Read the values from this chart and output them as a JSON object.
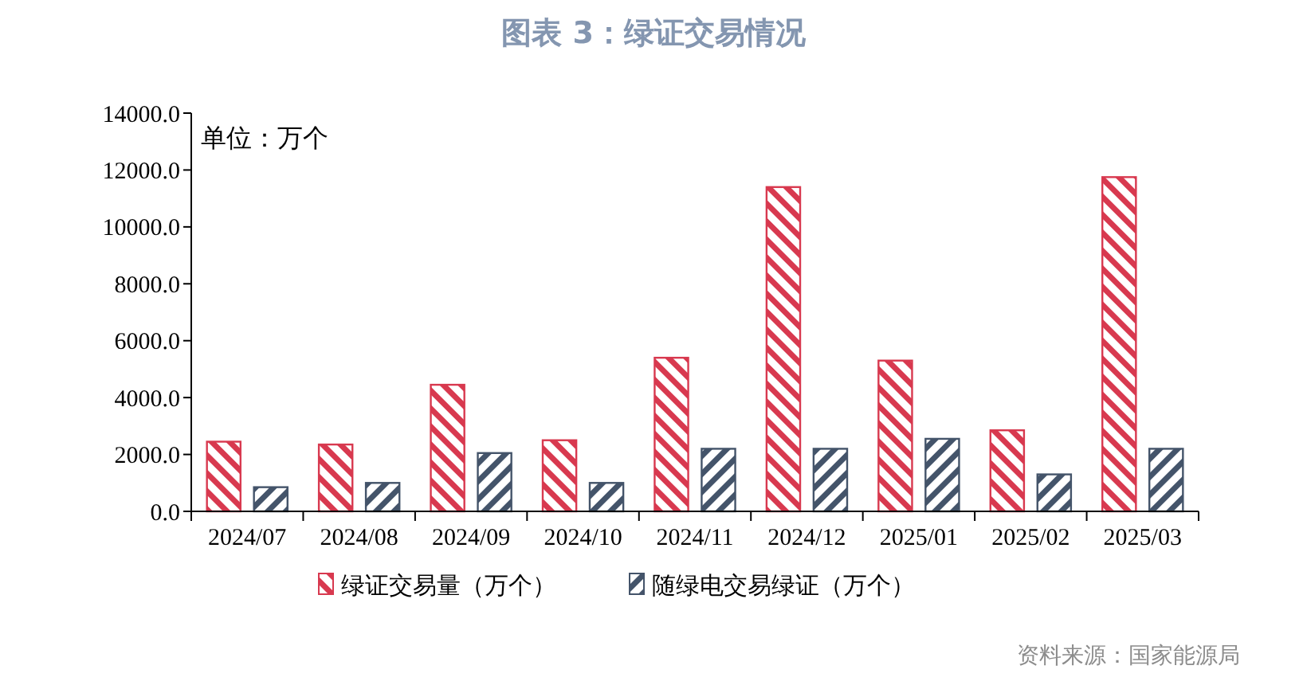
{
  "chart_data": {
    "type": "bar",
    "title": "图表 3：绿证交易情况",
    "categories": [
      "2024/07",
      "2024/08",
      "2024/09",
      "2024/10",
      "2024/11",
      "2024/12",
      "2025/01",
      "2025/02",
      "2025/03"
    ],
    "series": [
      {
        "name": "绿证交易量（万个）",
        "color": "#d8394f",
        "values": [
          2450,
          2350,
          4450,
          2500,
          5400,
          11400,
          5300,
          2850,
          11750
        ]
      },
      {
        "name": "随绿电交易绿证（万个）",
        "color": "#44546a",
        "values": [
          850,
          1000,
          2050,
          1000,
          2200,
          2200,
          2550,
          1300,
          2200
        ]
      }
    ],
    "ylim": [
      0,
      14000
    ],
    "yticks": [
      {
        "value": 0,
        "label": "0.0"
      },
      {
        "value": 2000,
        "label": "2000.0"
      },
      {
        "value": 4000,
        "label": "4000.0"
      },
      {
        "value": 6000,
        "label": "6000.0"
      },
      {
        "value": 8000,
        "label": "8000.0"
      },
      {
        "value": 10000,
        "label": "10000.0"
      },
      {
        "value": 12000,
        "label": "12000.0"
      },
      {
        "value": 14000,
        "label": "14000.0"
      }
    ],
    "grid": false,
    "legend": "bottom",
    "annotations": [
      "单位：万个",
      "资料来源：国家能源局"
    ]
  }
}
